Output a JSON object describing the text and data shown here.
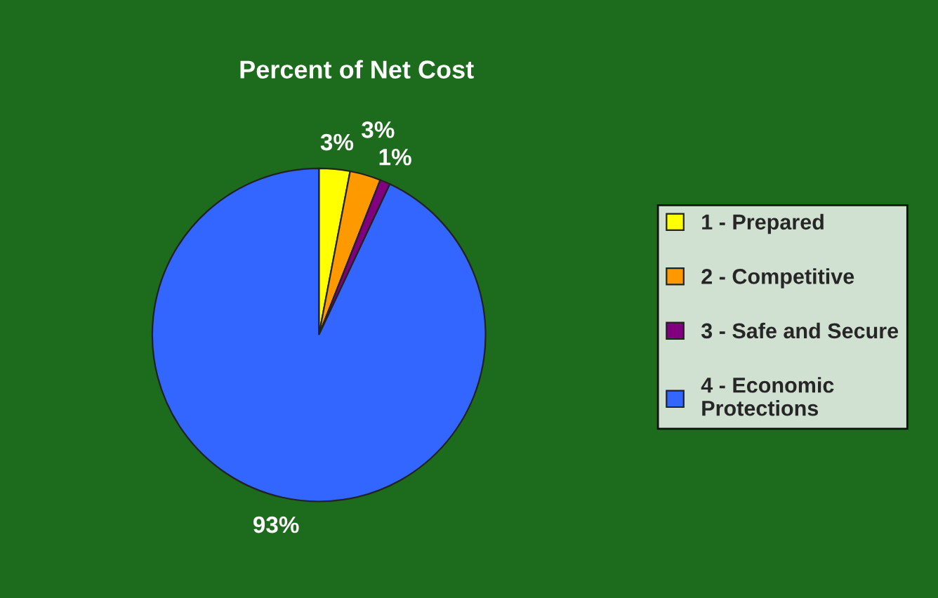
{
  "chart_data": {
    "type": "pie",
    "title": "Percent of Net Cost",
    "categories": [
      "1 - Prepared",
      "2 - Competitive",
      "3 - Safe and Secure",
      "4 - Economic\nProtections"
    ],
    "values": [
      3,
      3,
      1,
      93
    ],
    "colors": [
      "#ffff00",
      "#ff9900",
      "#800080",
      "#3366ff"
    ],
    "value_labels": [
      "3%",
      "3%",
      "1%",
      "93%"
    ],
    "legend": "right"
  }
}
